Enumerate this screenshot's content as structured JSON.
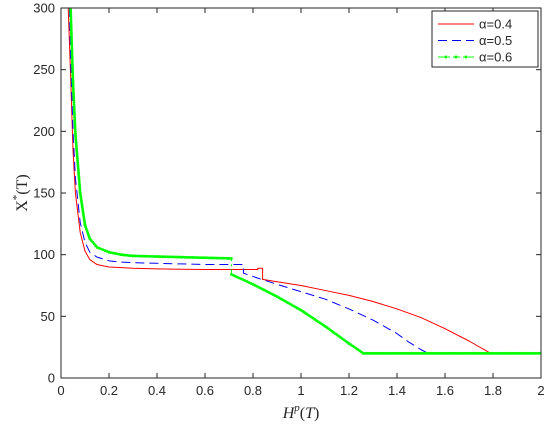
{
  "chart_data": {
    "type": "line",
    "xlabel": "H^p(T)",
    "ylabel": "X*(T)",
    "xlim": [
      0,
      2
    ],
    "ylim": [
      0,
      300
    ],
    "x_ticks": [
      0,
      0.2,
      0.4,
      0.6,
      0.8,
      1,
      1.2,
      1.4,
      1.6,
      1.8,
      2
    ],
    "x_tick_labels": [
      "0",
      "0.2",
      "0.4",
      "0.6",
      "0.8",
      "1",
      "1.2",
      "1.4",
      "1.6",
      "1.8",
      "2"
    ],
    "y_ticks": [
      0,
      50,
      100,
      150,
      200,
      250,
      300
    ],
    "y_tick_labels": [
      "0",
      "50",
      "100",
      "150",
      "200",
      "250",
      "300"
    ],
    "grid": false,
    "legend_position": "top-right",
    "series": [
      {
        "name": "α=0.4",
        "color": "#ff0000",
        "style": "solid",
        "x": [
          0.03,
          0.04,
          0.05,
          0.06,
          0.08,
          0.1,
          0.12,
          0.15,
          0.2,
          0.25,
          0.3,
          0.4,
          0.5,
          0.6,
          0.7,
          0.75,
          0.8,
          0.82,
          0.82,
          0.84,
          0.84,
          0.9,
          1.0,
          1.1,
          1.2,
          1.3,
          1.4,
          1.5,
          1.6,
          1.7,
          1.79,
          2.0
        ],
        "y": [
          300,
          245,
          185,
          150,
          118,
          103,
          96,
          92,
          90,
          89.5,
          89,
          88.5,
          88.2,
          88,
          88,
          88,
          88,
          88,
          89,
          89,
          80,
          78,
          75,
          71,
          67,
          62,
          56,
          49,
          40,
          30,
          20,
          20
        ]
      },
      {
        "name": "α=0.5",
        "color": "#0000ff",
        "style": "dashed",
        "x": [
          0.035,
          0.04,
          0.05,
          0.06,
          0.08,
          0.1,
          0.12,
          0.15,
          0.2,
          0.25,
          0.3,
          0.4,
          0.5,
          0.6,
          0.7,
          0.76,
          0.76,
          0.82,
          0.9,
          1.0,
          1.1,
          1.2,
          1.3,
          1.4,
          1.45,
          1.5,
          1.53,
          2.0
        ],
        "y": [
          300,
          260,
          200,
          162,
          126,
          110,
          102,
          98,
          95,
          94,
          93.5,
          93,
          92.5,
          92,
          92,
          92,
          85,
          81,
          76,
          70,
          64,
          56,
          47,
          36,
          29,
          23,
          20,
          20
        ]
      },
      {
        "name": "α=0.6",
        "color": "#00ff00",
        "style": "dash-dot-marker",
        "x": [
          0.04,
          0.05,
          0.06,
          0.08,
          0.1,
          0.12,
          0.15,
          0.2,
          0.25,
          0.3,
          0.4,
          0.5,
          0.6,
          0.7,
          0.71,
          0.71,
          0.8,
          0.9,
          1.0,
          1.1,
          1.2,
          1.26,
          2.0
        ],
        "y": [
          300,
          240,
          198,
          150,
          124,
          113,
          106,
          102,
          100,
          99,
          98.5,
          98,
          97.5,
          97,
          97,
          84,
          76,
          66,
          55,
          42,
          28,
          20,
          20
        ]
      }
    ]
  }
}
